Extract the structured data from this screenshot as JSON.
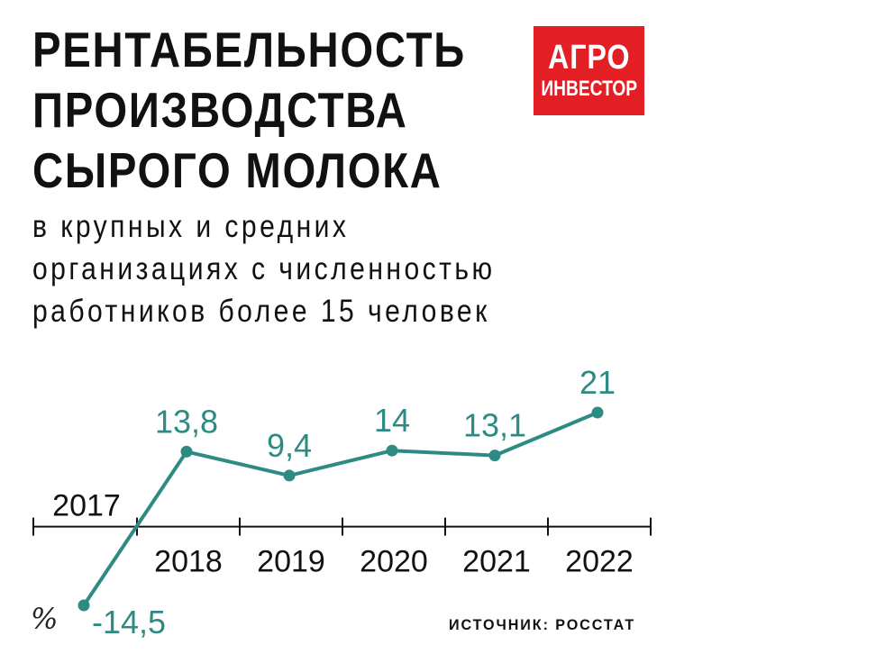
{
  "title": [
    "РЕНТАБЕЛЬНОСТЬ",
    "ПРОИЗВОДСТВА",
    "СЫРОГО МОЛОКА"
  ],
  "subtitle": [
    "в крупных и средних",
    "организациях с численностью",
    "работников более 15 человек"
  ],
  "logo": {
    "line1": "АГРО",
    "line2": "ИНВЕСТОР",
    "color": "#e31e24"
  },
  "unit": "%",
  "source": "ИСТОЧНИК: РОССТАТ",
  "colors": {
    "line": "#2e8b84",
    "axis": "#111111"
  },
  "chart_data": {
    "type": "line",
    "x": [
      "2017",
      "2018",
      "2019",
      "2020",
      "2021",
      "2022"
    ],
    "series": [
      {
        "values": [
          -14.5,
          13.8,
          9.4,
          14,
          13.1,
          21
        ],
        "labels": [
          "-14,5",
          "13,8",
          "9,4",
          "14",
          "13,1",
          "21"
        ]
      }
    ],
    "ylabel": "%",
    "ylim": [
      -14.5,
      21
    ],
    "grid": false,
    "legend": "none"
  }
}
